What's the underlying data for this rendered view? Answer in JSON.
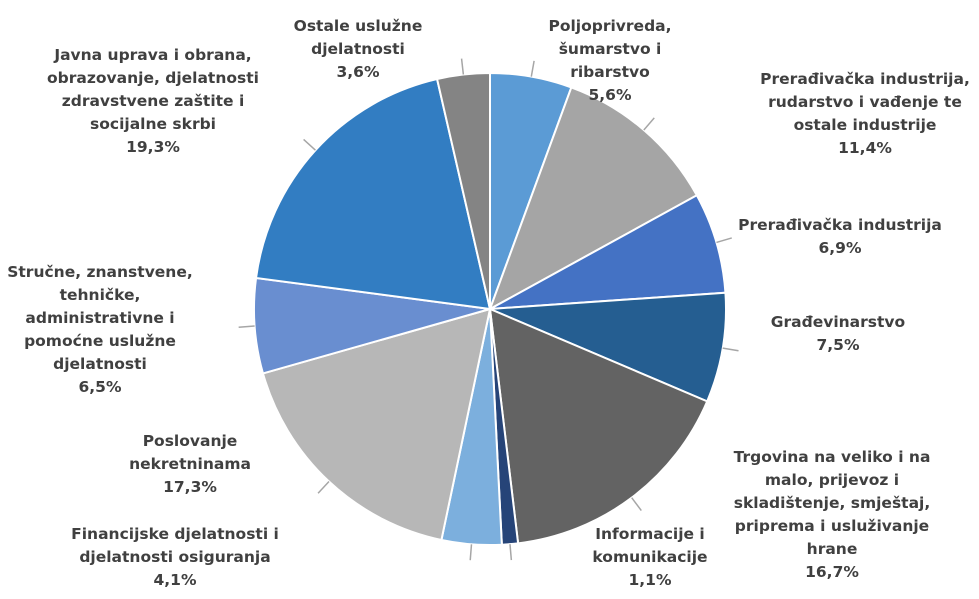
{
  "chart_data": {
    "type": "pie",
    "categories": [
      "Poljoprivreda, šumarstvo i ribarstvo",
      "Prerađivačka industrija, rudarstvo i vađenje te ostale industrije",
      "Prerađivačka industrija",
      "Građevinarstvo",
      "Trgovina na veliko i na malo, prijevoz i skladištenje, smještaj, priprema i usluživanje hrane",
      "Informacije i komunikacije",
      "Financijske djelatnosti i djelatnosti osiguranja",
      "Poslovanje nekretninama",
      "Stručne, znanstvene, tehničke, administrativne i pomoćne uslužne djelatnosti",
      "Javna uprava i obrana, obrazovanje, djelatnosti zdravstvene zaštite i socijalne skrbi",
      "Ostale uslužne djelatnosti"
    ],
    "values": [
      5.6,
      11.4,
      6.9,
      7.5,
      16.7,
      1.1,
      4.1,
      17.3,
      6.5,
      19.3,
      3.6
    ],
    "value_labels": [
      "5,6%",
      "11,4%",
      "6,9%",
      "7,5%",
      "16,7%",
      "1,1%",
      "4,1%",
      "17,3%",
      "6,5%",
      "19,3%",
      "3,6%"
    ],
    "colors": [
      "#5b9bd5",
      "#a5a5a5",
      "#4472c4",
      "#255e91",
      "#636363",
      "#264478",
      "#7cafdd",
      "#b7b7b7",
      "#698ed0",
      "#327dc2",
      "#848484"
    ]
  }
}
